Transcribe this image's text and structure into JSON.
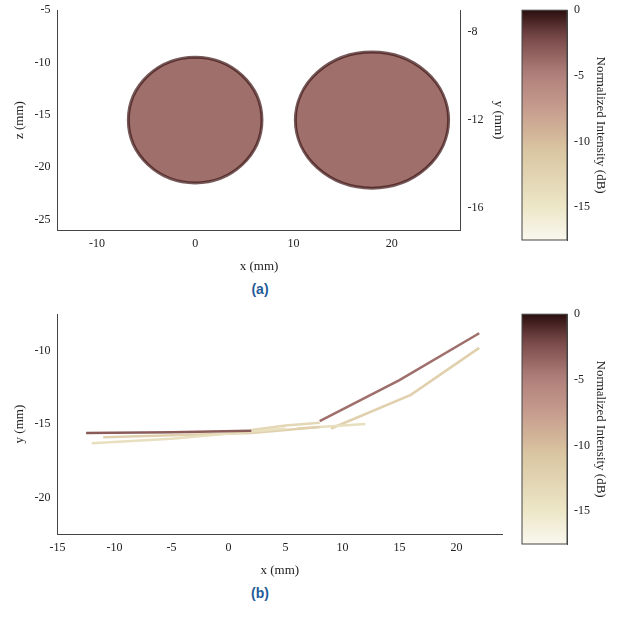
{
  "chart_data": [
    {
      "type": "shapes",
      "label": "(a)",
      "x_label": "x (mm)",
      "y_label": "z (mm)",
      "grid": false,
      "xlim": [
        -14,
        27
      ],
      "xticks": [
        -10,
        0,
        10,
        20
      ],
      "ylim": [
        -26,
        -5
      ],
      "yticks": [
        -25,
        -20,
        -15,
        -10,
        -5
      ],
      "depth_axis": {
        "label": "y (mm)",
        "lim": [
          -17,
          -7
        ],
        "ticks": [
          -16,
          -12,
          -8
        ]
      },
      "shapes": [
        {
          "x": 0,
          "y": -15.5,
          "rx": 6.8,
          "ry": 6,
          "intensity": -4
        },
        {
          "x": 18,
          "y": -15.5,
          "rx": 7.8,
          "ry": 6.5,
          "intensity": -4
        }
      ],
      "colorbar": {
        "label": "Normalized Intensity (dB)",
        "range": [
          -17.5,
          0
        ],
        "ticks": [
          0,
          -5,
          -10,
          -15
        ]
      }
    },
    {
      "type": "line",
      "label": "(b)",
      "x_label": "x (mm)",
      "y_label": "y (mm)",
      "grid": false,
      "xlim": [
        -15,
        24
      ],
      "xticks": [
        -15,
        -10,
        -5,
        0,
        5,
        10,
        15,
        20
      ],
      "ylim": [
        -22.5,
        -7.5
      ],
      "yticks": [
        -20,
        -15,
        -10
      ],
      "series": [
        {
          "x": [
            -12.5,
            -5,
            2
          ],
          "values": [
            -15.6,
            -15.55,
            -15.45
          ],
          "intensity": -3
        },
        {
          "x": [
            -12,
            -5,
            5
          ],
          "values": [
            -16.3,
            -16,
            -15.3
          ],
          "intensity": -14
        },
        {
          "x": [
            -11,
            2,
            8
          ],
          "values": [
            -15.9,
            -15.6,
            -15.2
          ],
          "intensity": -12
        },
        {
          "x": [
            2,
            5,
            8
          ],
          "values": [
            -15.4,
            -15.1,
            -14.9
          ],
          "intensity": -13
        },
        {
          "x": [
            8,
            15,
            22
          ],
          "values": [
            -14.8,
            -12,
            -8.8
          ],
          "intensity": -4
        },
        {
          "x": [
            6,
            12
          ],
          "values": [
            -15.3,
            -15
          ],
          "intensity": -14
        },
        {
          "x": [
            9,
            16,
            22
          ],
          "values": [
            -15.3,
            -13,
            -9.8
          ],
          "intensity": -12
        }
      ],
      "colorbar": {
        "label": "Normalized Intensity (dB)",
        "range": [
          -17.5,
          0
        ],
        "ticks": [
          0,
          -5,
          -10,
          -15
        ]
      }
    }
  ]
}
